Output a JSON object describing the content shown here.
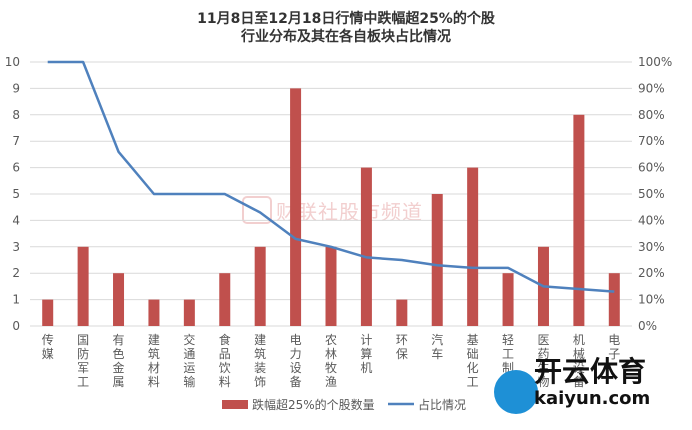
{
  "title_line1": "11月8日至12月18日行情中跌幅超25%的个股",
  "title_line2": "行业分布及其在各自板块占比情况",
  "watermark_text": "财联社股市频道",
  "brand_name": "开云体育",
  "brand_url": "kaiyun.com",
  "colors": {
    "bar": "#c0504d",
    "line": "#4f81bd",
    "grid": "#d9d9d9",
    "text": "#595959"
  },
  "chart_data": {
    "type": "bar",
    "categories": [
      "传媒",
      "国防军工",
      "有色金属",
      "建筑材料",
      "交通运输",
      "食品饮料",
      "建筑装饰",
      "电力设备",
      "农林牧渔",
      "计算机",
      "环保",
      "汽车",
      "基础化工",
      "轻工制造",
      "医药生物",
      "机械设备",
      "电子"
    ],
    "series": [
      {
        "name": "跌幅超25%的个股数量",
        "type": "bar",
        "axis": "left",
        "values": [
          1,
          3,
          2,
          1,
          1,
          2,
          3,
          9,
          3,
          6,
          1,
          5,
          6,
          2,
          3,
          8,
          2
        ]
      },
      {
        "name": "占比情况",
        "type": "line",
        "axis": "right",
        "values": [
          100,
          100,
          66,
          50,
          50,
          50,
          43,
          33,
          30,
          26,
          25,
          23,
          22,
          22,
          15,
          14,
          13
        ]
      }
    ],
    "ylim_left": [
      0,
      10
    ],
    "yticks_left": [
      "0",
      "1",
      "2",
      "3",
      "4",
      "5",
      "6",
      "7",
      "8",
      "9",
      "10"
    ],
    "ylim_right": [
      0,
      100
    ],
    "yticks_right": [
      "0%",
      "10%",
      "20%",
      "30%",
      "40%",
      "50%",
      "60%",
      "70%",
      "80%",
      "90%",
      "100%"
    ],
    "grid": true,
    "legend_position": "bottom"
  }
}
